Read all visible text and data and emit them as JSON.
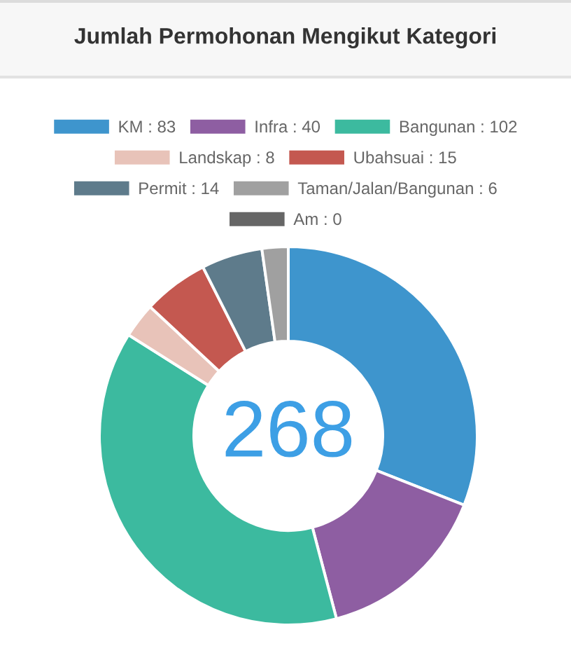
{
  "chart_data": {
    "type": "donut",
    "title": "Jumlah Permohonan Mengikut Kategori",
    "categories": [
      "KM : 83",
      "Infra : 40",
      "Bangunan : 102",
      "Landskap : 8",
      "Ubahsuai : 15",
      "Permit : 14",
      "Taman/Jalan/Bangunan : 6",
      "Am : 0"
    ],
    "values": [
      83,
      40,
      102,
      8,
      15,
      14,
      6,
      0
    ],
    "colors": [
      "#3e95cd",
      "#8e5ea2",
      "#3cba9f",
      "#e8c3b9",
      "#c45850",
      "#5e7b8b",
      "#a0a0a0",
      "#666666"
    ],
    "annotations": [
      "268"
    ],
    "legend": "top"
  }
}
